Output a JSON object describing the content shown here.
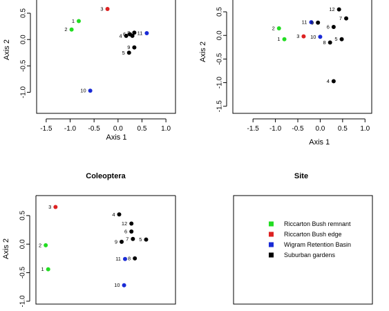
{
  "colors": {
    "remnant": "#22dd22",
    "edge": "#dd2222",
    "basin": "#1a2bd6",
    "suburban": "#000000"
  },
  "legend": {
    "title": "Site",
    "entries": [
      {
        "group": "remnant",
        "label": "Riccarton Bush remnant"
      },
      {
        "group": "edge",
        "label": "Riccarton Bush edge"
      },
      {
        "group": "basin",
        "label": "Wigram Retention Basin"
      },
      {
        "group": "suburban",
        "label": "Suburban gardens"
      }
    ]
  },
  "chart_data": [
    {
      "type": "scatter",
      "title": "",
      "xlabel": "Axis 1",
      "ylabel": "Axis 2",
      "xticks": [
        "-1.5",
        "-1.0",
        "-0.5",
        "0.0",
        "0.5",
        "1.0"
      ],
      "yticks": [
        "-1.0",
        "-0.5",
        "0.0",
        "0.5"
      ],
      "xlim": [
        -1.7,
        1.2
      ],
      "ylim": [
        -1.4,
        0.75
      ],
      "points": [
        {
          "label": "1",
          "x": -0.82,
          "y": 0.35,
          "group": "remnant"
        },
        {
          "label": "2",
          "x": -0.97,
          "y": 0.19,
          "group": "remnant"
        },
        {
          "label": "3",
          "x": -0.22,
          "y": 0.58,
          "group": "edge"
        },
        {
          "label": "4",
          "x": 0.17,
          "y": 0.07,
          "group": "suburban"
        },
        {
          "label": "6",
          "x": 0.25,
          "y": 0.1,
          "group": "suburban"
        },
        {
          "label": "7",
          "x": 0.3,
          "y": 0.07,
          "group": "suburban"
        },
        {
          "label": "8",
          "x": 0.34,
          "y": 0.13,
          "group": "suburban"
        },
        {
          "label": "5",
          "x": 0.23,
          "y": -0.25,
          "group": "suburban"
        },
        {
          "label": "9",
          "x": 0.34,
          "y": -0.15,
          "group": "suburban"
        },
        {
          "label": "11",
          "x": 0.6,
          "y": 0.12,
          "group": "basin"
        },
        {
          "label": "10",
          "x": -0.58,
          "y": -0.97,
          "group": "basin"
        }
      ]
    },
    {
      "type": "scatter",
      "title": "",
      "xlabel": "Axis 1",
      "ylabel": "Axis 2",
      "xticks": [
        "-1.5",
        "-1.0",
        "-0.5",
        "0.0",
        "0.5",
        "1.0"
      ],
      "yticks": [
        "-1.5",
        "-1.0",
        "-0.5",
        "0.0",
        "0.5"
      ],
      "xlim": [
        -1.95,
        1.15
      ],
      "ylim": [
        -1.65,
        0.75
      ],
      "points": [
        {
          "label": "12",
          "x": 0.42,
          "y": 0.55,
          "group": "suburban"
        },
        {
          "label": "7",
          "x": 0.58,
          "y": 0.36,
          "group": "suburban"
        },
        {
          "label": "11",
          "x": -0.2,
          "y": 0.28,
          "group": "basin"
        },
        {
          "label": "9",
          "x": -0.05,
          "y": 0.27,
          "group": "suburban"
        },
        {
          "label": "6",
          "x": 0.3,
          "y": 0.18,
          "group": "suburban"
        },
        {
          "label": "2",
          "x": -0.92,
          "y": 0.15,
          "group": "remnant"
        },
        {
          "label": "3",
          "x": -0.37,
          "y": -0.02,
          "group": "edge"
        },
        {
          "label": "10",
          "x": 0.0,
          "y": -0.03,
          "group": "basin"
        },
        {
          "label": "1",
          "x": -0.8,
          "y": -0.08,
          "group": "remnant"
        },
        {
          "label": "5",
          "x": 0.48,
          "y": -0.08,
          "group": "suburban"
        },
        {
          "label": "8",
          "x": 0.22,
          "y": -0.15,
          "group": "suburban"
        },
        {
          "label": "4",
          "x": 0.3,
          "y": -0.97,
          "group": "suburban"
        }
      ]
    },
    {
      "type": "scatter",
      "title": "Coleoptera",
      "xlabel": "",
      "ylabel": "Axis 2",
      "xticks": [],
      "yticks": [
        "-1.0",
        "-0.5",
        "0.0",
        "0.5"
      ],
      "xlim": [
        -1.4,
        1.45
      ],
      "ylim": [
        -1.05,
        0.85
      ],
      "points": [
        {
          "label": "3",
          "x": -1.0,
          "y": 0.65,
          "group": "edge"
        },
        {
          "label": "4",
          "x": 0.3,
          "y": 0.52,
          "group": "suburban"
        },
        {
          "label": "12",
          "x": 0.55,
          "y": 0.36,
          "group": "suburban"
        },
        {
          "label": "6",
          "x": 0.55,
          "y": 0.22,
          "group": "suburban"
        },
        {
          "label": "5",
          "x": 0.85,
          "y": 0.08,
          "group": "suburban"
        },
        {
          "label": "7",
          "x": 0.58,
          "y": 0.09,
          "group": "suburban"
        },
        {
          "label": "9",
          "x": 0.35,
          "y": 0.04,
          "group": "suburban"
        },
        {
          "label": "2",
          "x": -1.2,
          "y": -0.02,
          "group": "remnant"
        },
        {
          "label": "11",
          "x": 0.42,
          "y": -0.26,
          "group": "basin"
        },
        {
          "label": "8",
          "x": 0.62,
          "y": -0.25,
          "group": "suburban"
        },
        {
          "label": "1",
          "x": -1.15,
          "y": -0.44,
          "group": "remnant"
        },
        {
          "label": "10",
          "x": 0.4,
          "y": -0.72,
          "group": "basin"
        }
      ]
    }
  ]
}
